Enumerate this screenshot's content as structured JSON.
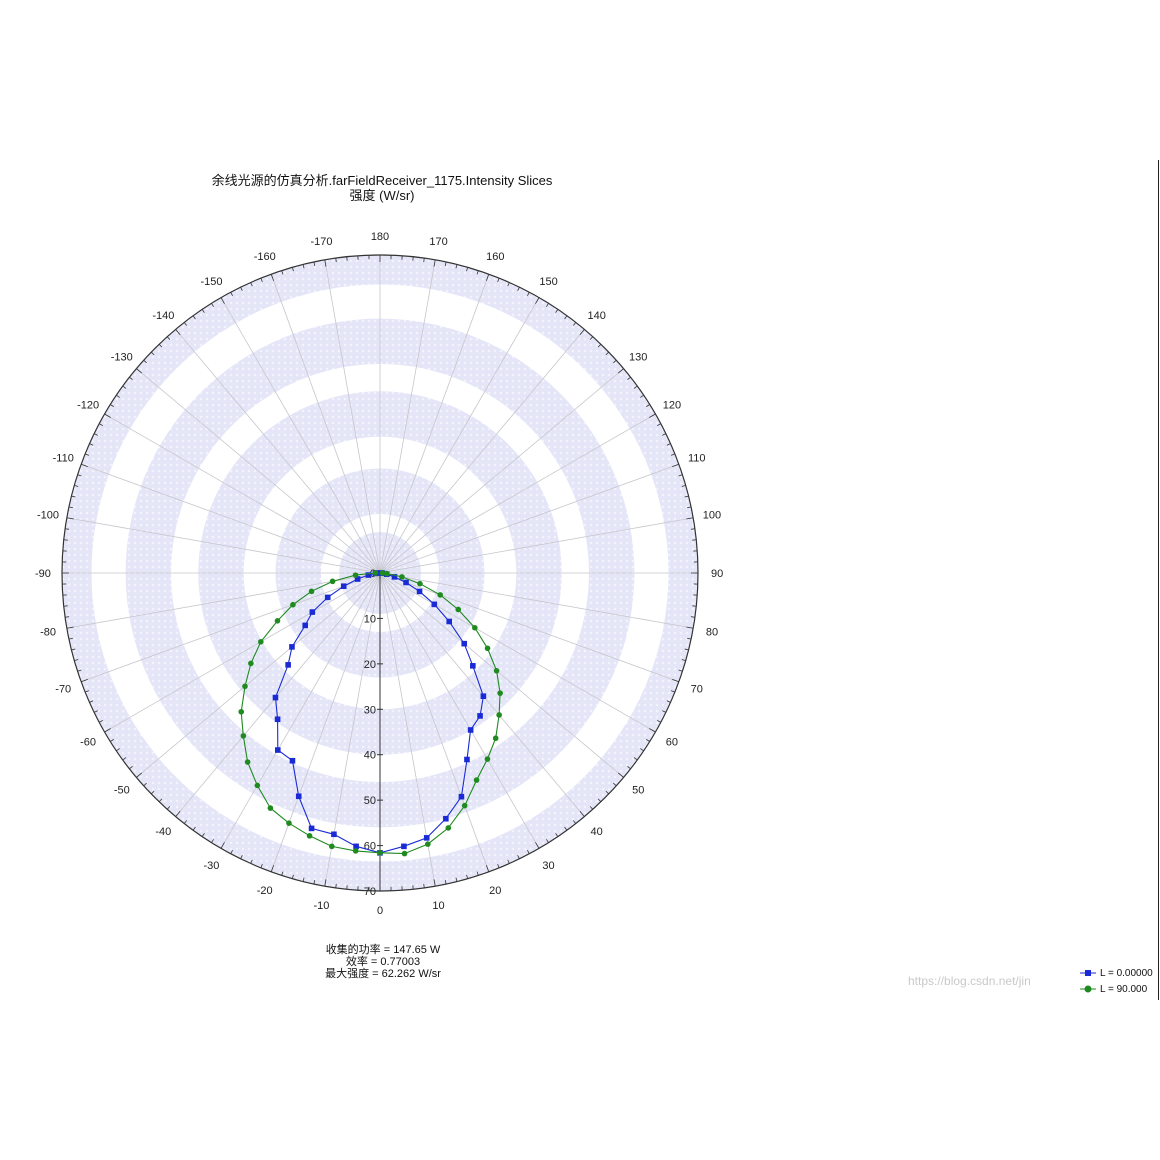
{
  "chart_data": {
    "type": "polar",
    "title": "余线光源的仿真分析.farFieldReceiver_1175.Intensity Slices",
    "subtitle": "强度 (W/sr)",
    "angle_ticks": [
      "180",
      "170",
      "160",
      "150",
      "140",
      "130",
      "120",
      "110",
      "100",
      "90",
      "80",
      "70",
      "60",
      "50",
      "40",
      "30",
      "20",
      "10",
      "0",
      "-10",
      "-20",
      "-30",
      "-40",
      "-50",
      "-60",
      "-70",
      "-80",
      "-90",
      "-100",
      "-110",
      "-120",
      "-130",
      "-140",
      "-150",
      "-160",
      "-170"
    ],
    "radial_ticks": [
      0,
      10,
      20,
      30,
      40,
      50,
      60,
      70
    ],
    "rlim": [
      0,
      70
    ],
    "grid": true,
    "stats": [
      "收集的功率 = 147.65  W",
      "效率 = 0.77003",
      "最大强度 = 62.262  W/sr"
    ],
    "series": [
      {
        "name": "L = 0.00000",
        "color": "#1a2bd6",
        "marker": "square",
        "points": [
          [
            -90,
            0.5
          ],
          [
            -85,
            1.0
          ],
          [
            -80,
            2.6
          ],
          [
            -75,
            5.1
          ],
          [
            -70,
            8.5
          ],
          [
            -65,
            12.7
          ],
          [
            -60,
            17.2
          ],
          [
            -55,
            20.1
          ],
          [
            -50,
            25.3
          ],
          [
            -45,
            28.6
          ],
          [
            -40,
            35.8
          ],
          [
            -35,
            39.3
          ],
          [
            -30,
            45.0
          ],
          [
            -25,
            45.6
          ],
          [
            -20,
            52.3
          ],
          [
            -15,
            58.2
          ],
          [
            -10,
            58.4
          ],
          [
            -5,
            60.4
          ],
          [
            0,
            61.6
          ],
          [
            5,
            60.4
          ],
          [
            10,
            59.2
          ],
          [
            15,
            56.0
          ],
          [
            20,
            52.4
          ],
          [
            25,
            45.3
          ],
          [
            30,
            39.9
          ],
          [
            35,
            38.4
          ],
          [
            40,
            35.4
          ],
          [
            45,
            28.9
          ],
          [
            50,
            24.2
          ],
          [
            55,
            18.6
          ],
          [
            60,
            13.8
          ],
          [
            65,
            9.6
          ],
          [
            70,
            6.1
          ],
          [
            75,
            3.3
          ],
          [
            80,
            1.5
          ],
          [
            85,
            0.5
          ],
          [
            90,
            0.3
          ]
        ]
      },
      {
        "name": "L = 90.000",
        "color": "#1f8a1f",
        "marker": "circle",
        "points": [
          [
            -90,
            1.0
          ],
          [
            -85,
            5.4
          ],
          [
            -80,
            10.6
          ],
          [
            -75,
            15.6
          ],
          [
            -70,
            20.4
          ],
          [
            -65,
            24.9
          ],
          [
            -60,
            30.3
          ],
          [
            -55,
            34.7
          ],
          [
            -50,
            38.8
          ],
          [
            -45,
            43.2
          ],
          [
            -40,
            46.8
          ],
          [
            -35,
            50.8
          ],
          [
            -30,
            54.0
          ],
          [
            -25,
            57.1
          ],
          [
            -20,
            58.6
          ],
          [
            -15,
            59.9
          ],
          [
            -10,
            61.1
          ],
          [
            -5,
            61.4
          ],
          [
            0,
            61.6
          ],
          [
            5,
            62.0
          ],
          [
            10,
            60.6
          ],
          [
            15,
            58.1
          ],
          [
            20,
            54.5
          ],
          [
            25,
            50.3
          ],
          [
            30,
            47.3
          ],
          [
            35,
            44.4
          ],
          [
            40,
            40.8
          ],
          [
            45,
            37.4
          ],
          [
            50,
            33.5
          ],
          [
            55,
            28.9
          ],
          [
            60,
            24.1
          ],
          [
            65,
            19.0
          ],
          [
            70,
            14.1
          ],
          [
            75,
            9.1
          ],
          [
            80,
            4.9
          ],
          [
            85,
            1.5
          ],
          [
            90,
            0.5
          ]
        ]
      }
    ]
  },
  "watermark": "https://blog.csdn.net/jin"
}
